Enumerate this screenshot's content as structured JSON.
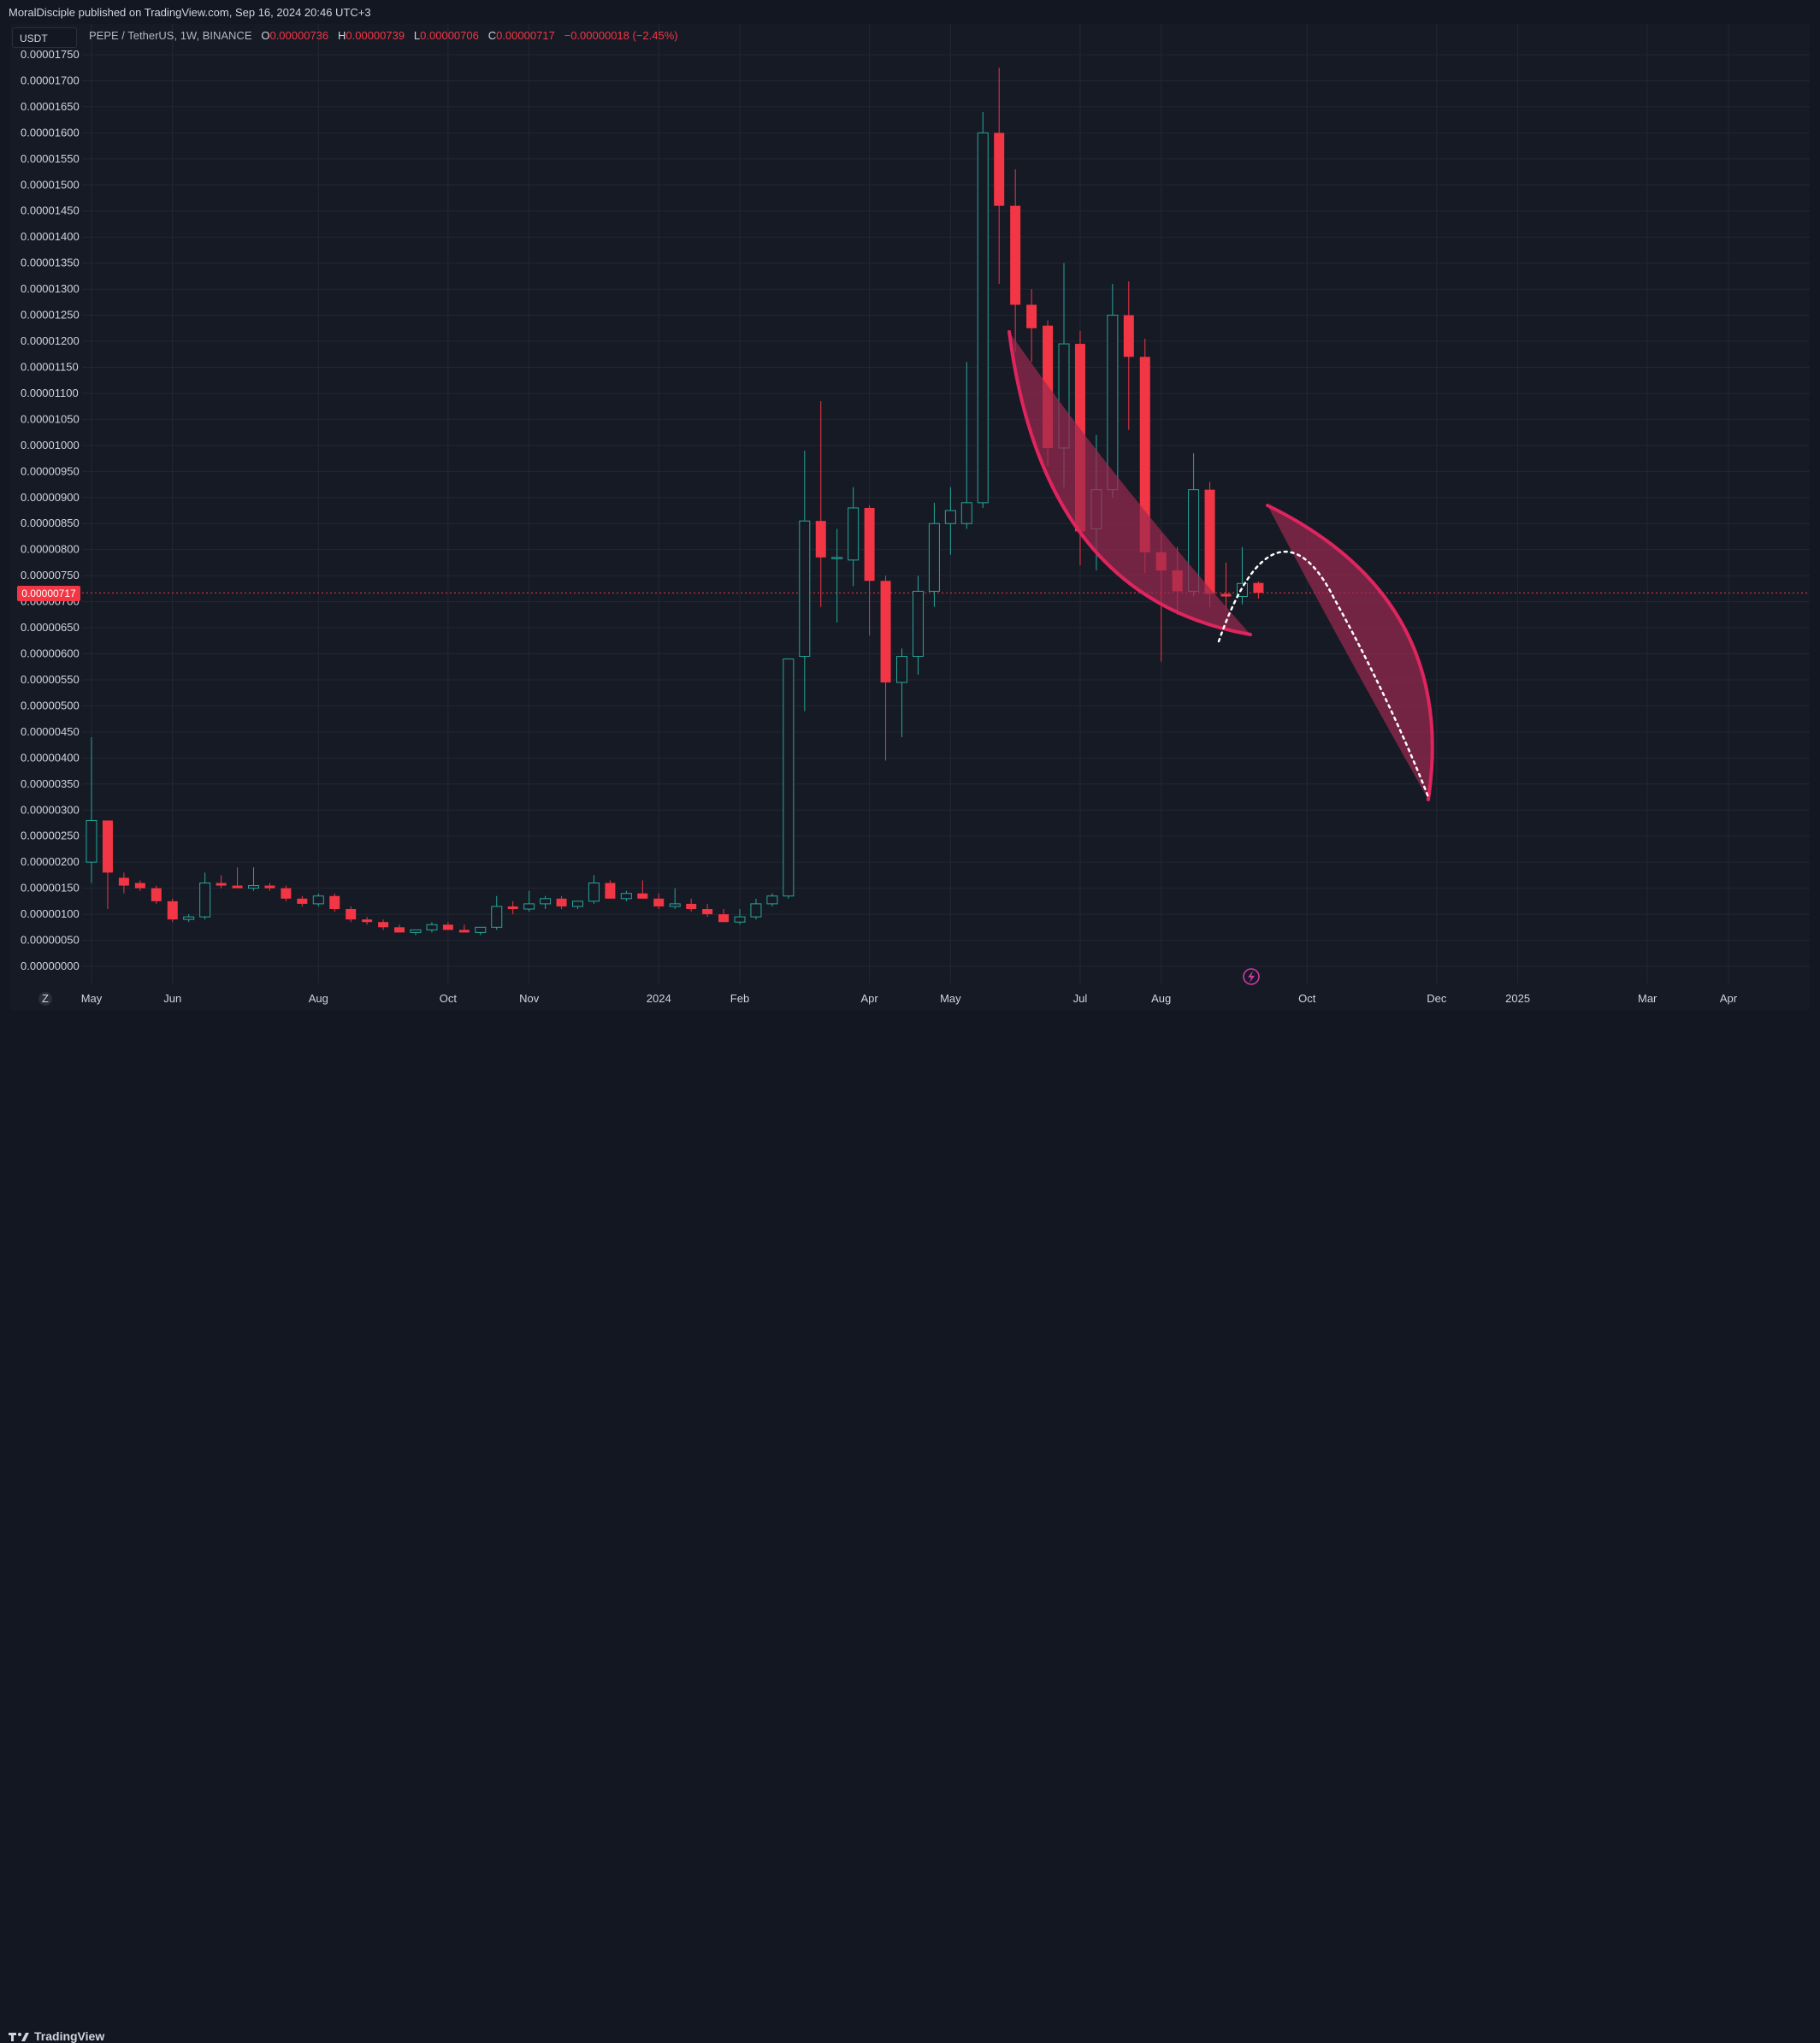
{
  "header": {
    "published_text": "MoralDisciple published on TradingView.com, Sep 16, 2024 20:46 UTC+3"
  },
  "legend": {
    "symbol": "PEPE / TetherUS, 1W, BINANCE",
    "o_label": "O",
    "o_value": "0.00000736",
    "h_label": "H",
    "h_value": "0.00000739",
    "l_label": "L",
    "l_value": "0.00000706",
    "c_label": "C",
    "c_value": "0.00000717",
    "change": "−0.00000018 (−2.45%)"
  },
  "unit_selector": {
    "label": "USDT"
  },
  "last_price_label": "0.00000717",
  "footer": {
    "brand": "TradingView"
  },
  "colors": {
    "bull": "#26a69a",
    "bear": "#f23645",
    "grid": "#232733",
    "projection_fill": "#9c2950",
    "projection_stroke": "#e0245e"
  },
  "chart_data": {
    "type": "candlestick",
    "symbol": "PEPE / TetherUS",
    "interval": "1W",
    "exchange": "BINANCE",
    "y_axis": {
      "min": 0.0,
      "max": 1.75e-05,
      "tick_step": 5e-07,
      "ticks": [
        "0.00000000",
        "0.00000050",
        "0.00000100",
        "0.00000150",
        "0.00000200",
        "0.00000250",
        "0.00000300",
        "0.00000350",
        "0.00000400",
        "0.00000450",
        "0.00000500",
        "0.00000550",
        "0.00000600",
        "0.00000650",
        "0.00000700",
        "0.00000750",
        "0.00000800",
        "0.00000850",
        "0.00000900",
        "0.00000950",
        "0.00001000",
        "0.00001050",
        "0.00001100",
        "0.00001150",
        "0.00001200",
        "0.00001250",
        "0.00001300",
        "0.00001350",
        "0.00001400",
        "0.00001450",
        "0.00001500",
        "0.00001550",
        "0.00001600",
        "0.00001650",
        "0.00001700",
        "0.00001750"
      ]
    },
    "x_axis": {
      "ticks": [
        {
          "label": "May",
          "week": 0
        },
        {
          "label": "Jun",
          "week": 5
        },
        {
          "label": "Aug",
          "week": 14
        },
        {
          "label": "Oct",
          "week": 22
        },
        {
          "label": "Nov",
          "week": 27
        },
        {
          "label": "2024",
          "week": 35
        },
        {
          "label": "Feb",
          "week": 40
        },
        {
          "label": "Apr",
          "week": 48
        },
        {
          "label": "May",
          "week": 53
        },
        {
          "label": "Jul",
          "week": 61
        },
        {
          "label": "Aug",
          "week": 66
        },
        {
          "label": "Oct",
          "week": 75
        },
        {
          "label": "Dec",
          "week": 83
        },
        {
          "label": "2025",
          "week": 88
        },
        {
          "label": "Mar",
          "week": 96
        },
        {
          "label": "Apr",
          "week": 101
        }
      ]
    },
    "candles": [
      {
        "o": 2e-06,
        "h": 4.4e-06,
        "l": 1.6e-06,
        "c": 2.8e-06
      },
      {
        "o": 2.8e-06,
        "h": 2.8e-06,
        "l": 1.1e-06,
        "c": 1.8e-06
      },
      {
        "o": 1.7e-06,
        "h": 1.8e-06,
        "l": 1.4e-06,
        "c": 1.55e-06
      },
      {
        "o": 1.6e-06,
        "h": 1.65e-06,
        "l": 1.45e-06,
        "c": 1.5e-06
      },
      {
        "o": 1.5e-06,
        "h": 1.55e-06,
        "l": 1.2e-06,
        "c": 1.25e-06
      },
      {
        "o": 1.25e-06,
        "h": 1.3e-06,
        "l": 8.5e-07,
        "c": 9e-07
      },
      {
        "o": 9e-07,
        "h": 1e-06,
        "l": 8.5e-07,
        "c": 9.5e-07
      },
      {
        "o": 9.5e-07,
        "h": 1.8e-06,
        "l": 9e-07,
        "c": 1.6e-06
      },
      {
        "o": 1.6e-06,
        "h": 1.75e-06,
        "l": 1.5e-06,
        "c": 1.55e-06
      },
      {
        "o": 1.55e-06,
        "h": 1.9e-06,
        "l": 1.5e-06,
        "c": 1.5e-06
      },
      {
        "o": 1.5e-06,
        "h": 1.9e-06,
        "l": 1.45e-06,
        "c": 1.55e-06
      },
      {
        "o": 1.55e-06,
        "h": 1.6e-06,
        "l": 1.45e-06,
        "c": 1.5e-06
      },
      {
        "o": 1.5e-06,
        "h": 1.55e-06,
        "l": 1.25e-06,
        "c": 1.3e-06
      },
      {
        "o": 1.3e-06,
        "h": 1.35e-06,
        "l": 1.15e-06,
        "c": 1.2e-06
      },
      {
        "o": 1.2e-06,
        "h": 1.4e-06,
        "l": 1.15e-06,
        "c": 1.35e-06
      },
      {
        "o": 1.35e-06,
        "h": 1.4e-06,
        "l": 1.05e-06,
        "c": 1.1e-06
      },
      {
        "o": 1.1e-06,
        "h": 1.15e-06,
        "l": 8.5e-07,
        "c": 9e-07
      },
      {
        "o": 9e-07,
        "h": 9.5e-07,
        "l": 8e-07,
        "c": 8.5e-07
      },
      {
        "o": 8.5e-07,
        "h": 9e-07,
        "l": 7e-07,
        "c": 7.5e-07
      },
      {
        "o": 7.5e-07,
        "h": 8e-07,
        "l": 6.5e-07,
        "c": 6.5e-07
      },
      {
        "o": 6.5e-07,
        "h": 7e-07,
        "l": 6e-07,
        "c": 7e-07
      },
      {
        "o": 7e-07,
        "h": 8.5e-07,
        "l": 6.5e-07,
        "c": 8e-07
      },
      {
        "o": 8e-07,
        "h": 8.5e-07,
        "l": 7e-07,
        "c": 7e-07
      },
      {
        "o": 7e-07,
        "h": 8e-07,
        "l": 6.5e-07,
        "c": 6.5e-07
      },
      {
        "o": 6.5e-07,
        "h": 7.5e-07,
        "l": 6e-07,
        "c": 7.5e-07
      },
      {
        "o": 7.5e-07,
        "h": 1.35e-06,
        "l": 7e-07,
        "c": 1.15e-06
      },
      {
        "o": 1.15e-06,
        "h": 1.25e-06,
        "l": 1e-06,
        "c": 1.1e-06
      },
      {
        "o": 1.1e-06,
        "h": 1.45e-06,
        "l": 1.05e-06,
        "c": 1.2e-06
      },
      {
        "o": 1.2e-06,
        "h": 1.35e-06,
        "l": 1.1e-06,
        "c": 1.3e-06
      },
      {
        "o": 1.3e-06,
        "h": 1.35e-06,
        "l": 1.1e-06,
        "c": 1.15e-06
      },
      {
        "o": 1.15e-06,
        "h": 1.25e-06,
        "l": 1.1e-06,
        "c": 1.25e-06
      },
      {
        "o": 1.25e-06,
        "h": 1.75e-06,
        "l": 1.2e-06,
        "c": 1.6e-06
      },
      {
        "o": 1.6e-06,
        "h": 1.65e-06,
        "l": 1.3e-06,
        "c": 1.3e-06
      },
      {
        "o": 1.3e-06,
        "h": 1.45e-06,
        "l": 1.25e-06,
        "c": 1.4e-06
      },
      {
        "o": 1.4e-06,
        "h": 1.65e-06,
        "l": 1.3e-06,
        "c": 1.3e-06
      },
      {
        "o": 1.3e-06,
        "h": 1.4e-06,
        "l": 1.1e-06,
        "c": 1.15e-06
      },
      {
        "o": 1.15e-06,
        "h": 1.5e-06,
        "l": 1.1e-06,
        "c": 1.2e-06
      },
      {
        "o": 1.2e-06,
        "h": 1.3e-06,
        "l": 1.05e-06,
        "c": 1.1e-06
      },
      {
        "o": 1.1e-06,
        "h": 1.2e-06,
        "l": 9.5e-07,
        "c": 1e-06
      },
      {
        "o": 1e-06,
        "h": 1.1e-06,
        "l": 8.5e-07,
        "c": 8.5e-07
      },
      {
        "o": 8.5e-07,
        "h": 1.1e-06,
        "l": 8e-07,
        "c": 9.5e-07
      },
      {
        "o": 9.5e-07,
        "h": 1.3e-06,
        "l": 9e-07,
        "c": 1.2e-06
      },
      {
        "o": 1.2e-06,
        "h": 1.4e-06,
        "l": 1.15e-06,
        "c": 1.35e-06
      },
      {
        "o": 1.35e-06,
        "h": 5.9e-06,
        "l": 1.3e-06,
        "c": 5.9e-06
      },
      {
        "o": 5.95e-06,
        "h": 9.9e-06,
        "l": 4.9e-06,
        "c": 8.55e-06
      },
      {
        "o": 8.55e-06,
        "h": 1.085e-05,
        "l": 6.9e-06,
        "c": 7.85e-06
      },
      {
        "o": 7.85e-06,
        "h": 8.4e-06,
        "l": 6.6e-06,
        "c": 7.85e-06
      },
      {
        "o": 7.8e-06,
        "h": 9.2e-06,
        "l": 7.3e-06,
        "c": 8.8e-06
      },
      {
        "o": 8.8e-06,
        "h": 8.85e-06,
        "l": 6.35e-06,
        "c": 7.4e-06
      },
      {
        "o": 7.4e-06,
        "h": 7.5e-06,
        "l": 3.95e-06,
        "c": 5.45e-06
      },
      {
        "o": 5.45e-06,
        "h": 6.1e-06,
        "l": 4.4e-06,
        "c": 5.95e-06
      },
      {
        "o": 5.95e-06,
        "h": 7.5e-06,
        "l": 5.6e-06,
        "c": 7.2e-06
      },
      {
        "o": 7.2e-06,
        "h": 8.9e-06,
        "l": 6.9e-06,
        "c": 8.5e-06
      },
      {
        "o": 8.5e-06,
        "h": 9.2e-06,
        "l": 7.9e-06,
        "c": 8.75e-06
      },
      {
        "o": 8.5e-06,
        "h": 1.16e-05,
        "l": 8.4e-06,
        "c": 8.9e-06
      },
      {
        "o": 8.9e-06,
        "h": 1.64e-05,
        "l": 8.8e-06,
        "c": 1.6e-05
      },
      {
        "o": 1.6e-05,
        "h": 1.725e-05,
        "l": 1.31e-05,
        "c": 1.46e-05
      },
      {
        "o": 1.46e-05,
        "h": 1.53e-05,
        "l": 1.18e-05,
        "c": 1.27e-05
      },
      {
        "o": 1.27e-05,
        "h": 1.3e-05,
        "l": 1.16e-05,
        "c": 1.225e-05
      },
      {
        "o": 1.23e-05,
        "h": 1.24e-05,
        "l": 9.6e-06,
        "c": 9.95e-06
      },
      {
        "o": 9.95e-06,
        "h": 1.35e-05,
        "l": 9.2e-06,
        "c": 1.195e-05
      },
      {
        "o": 1.195e-05,
        "h": 1.22e-05,
        "l": 7.7e-06,
        "c": 8.35e-06
      },
      {
        "o": 8.4e-06,
        "h": 1.02e-05,
        "l": 7.6e-06,
        "c": 9.15e-06
      },
      {
        "o": 9.15e-06,
        "h": 1.31e-05,
        "l": 9e-06,
        "c": 1.25e-05
      },
      {
        "o": 1.25e-05,
        "h": 1.315e-05,
        "l": 1.03e-05,
        "c": 1.17e-05
      },
      {
        "o": 1.17e-05,
        "h": 1.205e-05,
        "l": 7.55e-06,
        "c": 7.95e-06
      },
      {
        "o": 7.95e-06,
        "h": 8.3e-06,
        "l": 5.85e-06,
        "c": 7.6e-06
      },
      {
        "o": 7.6e-06,
        "h": 8.05e-06,
        "l": 6.75e-06,
        "c": 7.2e-06
      },
      {
        "o": 7.2e-06,
        "h": 9.85e-06,
        "l": 7.1e-06,
        "c": 9.15e-06
      },
      {
        "o": 9.15e-06,
        "h": 9.3e-06,
        "l": 6.9e-06,
        "c": 7.15e-06
      },
      {
        "o": 7.15e-06,
        "h": 7.75e-06,
        "l": 6.85e-06,
        "c": 7.1e-06
      },
      {
        "o": 7.1e-06,
        "h": 8.05e-06,
        "l": 6.95e-06,
        "c": 7.35e-06
      },
      {
        "o": 7.36e-06,
        "h": 7.39e-06,
        "l": 7.06e-06,
        "c": 7.17e-06
      }
    ],
    "last_price": 7.17e-06,
    "annotations": [
      {
        "type": "curved-channel",
        "description": "pink crescent along decline"
      },
      {
        "type": "curved-channel",
        "description": "pink crescent projection"
      },
      {
        "type": "dotted-path",
        "description": "white dotted projected path"
      }
    ]
  }
}
